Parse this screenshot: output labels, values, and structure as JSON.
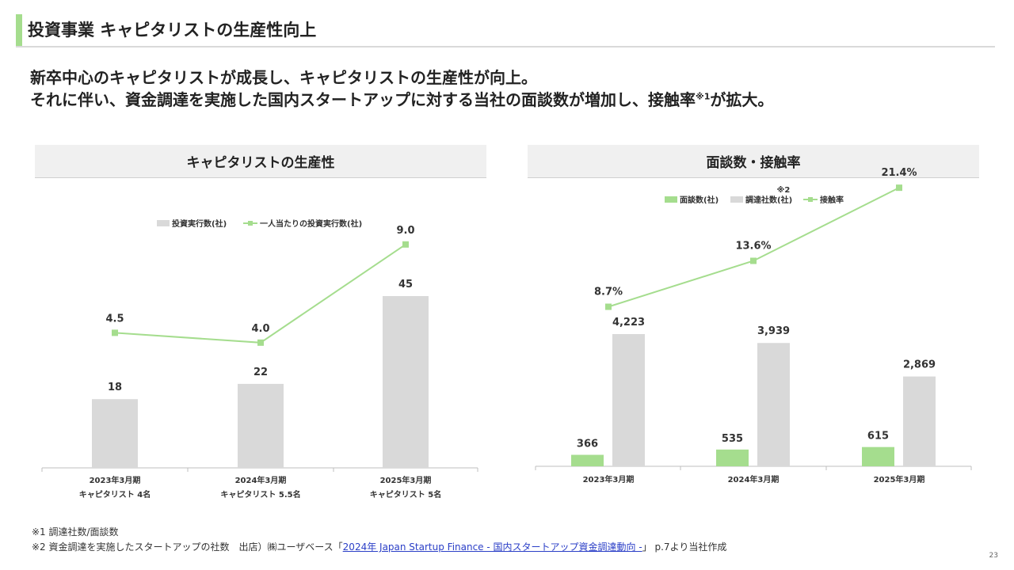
{
  "slide": {
    "title": "投資事業 キャピタリストの生産性向上",
    "lead_line1": "新卒中心のキャピタリストが成長し、キャピタリストの生産性が向上。",
    "lead_line2_pre": "それに伴い、資金調達を実施した国内スタートアップに対する当社の面談数が増加し、接触率",
    "lead_line2_sup": "※1",
    "lead_line2_post": "が拡大。",
    "page_number": "23"
  },
  "colors": {
    "accent_green": "#a5dd8e",
    "bar_gray": "#d9d9d9",
    "panel_bg": "#f0f0f0",
    "link": "#2b3fc7"
  },
  "notes": {
    "note1": "※1 調達社数/面談数",
    "note2_pre": "※2 資金調達を実施したスタートアップの社数　出店）㈱ユーザベース「",
    "note2_link": "2024年 Japan Startup Finance - 国内スタートアップ資金調達動向 -",
    "note2_post": "」 p.7より当社作成"
  },
  "chart_data": [
    {
      "type": "bar",
      "title": "キャピタリストの生産性",
      "categories": [
        "2023年3月期",
        "2024年3月期",
        "2025年3月期"
      ],
      "category_sublabels": [
        "キャピタリスト 4名",
        "キャピタリスト 5.5名",
        "キャピタリスト 5名"
      ],
      "legend": {
        "position": "top-center",
        "items": [
          "投資実行数(社)",
          "一人当たりの投資実行数(社)"
        ]
      },
      "series": [
        {
          "name": "投資実行数(社)",
          "kind": "bar",
          "color": "#d9d9d9",
          "values": [
            18,
            22,
            45
          ],
          "labels": [
            "18",
            "22",
            "45"
          ]
        },
        {
          "name": "一人当たりの投資実行数(社)",
          "kind": "line",
          "color": "#a5dd8e",
          "values": [
            4.5,
            4.0,
            9.0
          ],
          "labels": [
            "4.5",
            "4.0",
            "9.0"
          ]
        }
      ]
    },
    {
      "type": "bar",
      "title": "面談数・接触率",
      "categories": [
        "2023年3月期",
        "2024年3月期",
        "2025年3月期"
      ],
      "legend": {
        "position": "top-center",
        "note": "※2",
        "items": [
          "面談数(社)",
          "調達社数(社)",
          "接触率"
        ]
      },
      "series": [
        {
          "name": "面談数(社)",
          "kind": "bar",
          "color": "#a5dd8e",
          "values": [
            366,
            535,
            615
          ],
          "labels": [
            "366",
            "535",
            "615"
          ]
        },
        {
          "name": "調達社数(社)",
          "kind": "bar",
          "color": "#d9d9d9",
          "values": [
            4223,
            3939,
            2869
          ],
          "labels": [
            "4,223",
            "3,939",
            "2,869"
          ]
        },
        {
          "name": "接触率",
          "kind": "line",
          "color": "#a5dd8e",
          "values": [
            8.7,
            13.6,
            21.4
          ],
          "labels": [
            "8.7%",
            "13.6%",
            "21.4%"
          ]
        }
      ]
    }
  ]
}
